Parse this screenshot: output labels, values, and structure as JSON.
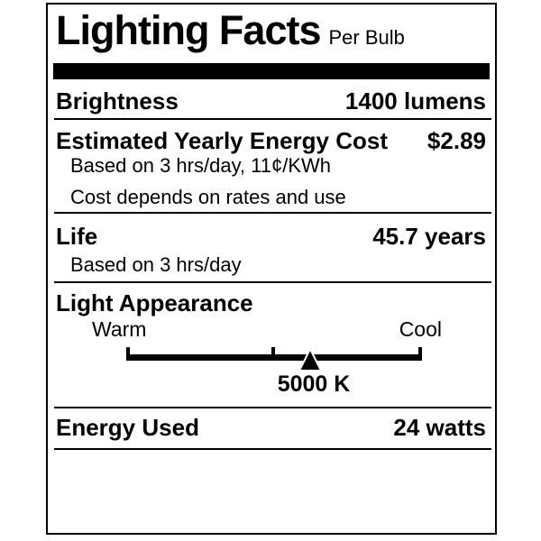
{
  "label": {
    "title": "Lighting Facts",
    "subtitle": "Per Bulb",
    "brightness": {
      "label": "Brightness",
      "value": "1400 lumens"
    },
    "energy_cost": {
      "label": "Estimated Yearly Energy Cost",
      "value": "$2.89",
      "note_1": "Based on 3 hrs/day, 11¢/KWh",
      "note_2": "Cost depends on rates and use"
    },
    "life": {
      "label": "Life",
      "value": "45.7 years",
      "note": "Based on 3 hrs/day"
    },
    "light_appearance": {
      "label": "Light Appearance",
      "scale_min_label": "Warm",
      "scale_max_label": "Cool",
      "marker_label": "5000 K",
      "marker_position_pct": 62.2
    },
    "energy_used": {
      "label": "Energy Used",
      "value": "24 watts"
    },
    "colors": {
      "ink": "#000000",
      "background": "#ffffff"
    }
  }
}
